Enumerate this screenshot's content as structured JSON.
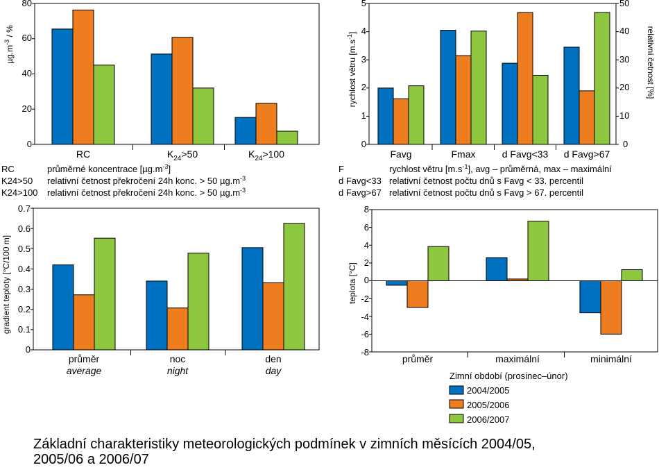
{
  "colors": {
    "s1": "#0070C0",
    "s2": "#ED7D1F",
    "s3": "#8DC63F",
    "axis": "#000000",
    "sep": "#9a9a9a"
  },
  "legend": {
    "title": "Zimní období (prosinec–únor)",
    "items": [
      "2004/2005",
      "2005/2006",
      "2006/2007"
    ]
  },
  "legend_text": {
    "left": [
      {
        "key": "RC",
        "desc": "průměrné koncentrace [µg.m-3]"
      },
      {
        "key": "K24>50",
        "desc": "relativní četnost překročení 24h konc. > 50 µg.m-3"
      },
      {
        "key": "K24>100",
        "desc": "relativní četnost překročení 24h konc. > 50 µg.m-3"
      }
    ],
    "right": [
      {
        "key": "F",
        "desc": "rychlost větru [m.s-1], avg – průměrná, max – maximální"
      },
      {
        "key": "d Favg<33",
        "desc": "relativní četnost počtu dnů s Favg < 33. percentil"
      },
      {
        "key": "d Favg>67",
        "desc": "relativní četnost počtu dnů s Favg > 67. percentil"
      }
    ]
  },
  "caption": {
    "line1": "Základní charakteristiky meteorologických podmínek v zimních měsících 2004/05,",
    "line2": "2005/06 a 2006/07"
  },
  "chart_data": [
    {
      "type": "bar",
      "id": "concentration",
      "title": "",
      "ylabel": "µg.m-3 / %",
      "ylim": [
        0,
        80
      ],
      "yticks": [
        "0",
        "20",
        "40",
        "60",
        "80"
      ],
      "categories": [
        "RC",
        "K24>50",
        "K24>100"
      ],
      "series": [
        {
          "values": [
            65.5,
            51.3,
            15.3
          ]
        },
        {
          "values": [
            76.3,
            60.8,
            23.3
          ]
        },
        {
          "values": [
            45.0,
            32.0,
            7.5
          ]
        }
      ]
    },
    {
      "type": "bar",
      "id": "wind",
      "title": "",
      "ylabel": "rychlost větru [m.s-1]",
      "ylim": [
        0,
        5
      ],
      "yticks": [
        "0",
        "1",
        "2",
        "3",
        "4",
        "5"
      ],
      "y2label": "relativní četnost [%]",
      "y2lim": [
        0,
        50
      ],
      "y2ticks": [
        "0",
        "10",
        "20",
        "30",
        "40",
        "50"
      ],
      "categories": [
        "Favg",
        "Fmax",
        "d Favg<33",
        "d Favg>67"
      ],
      "series": [
        {
          "values": [
            2.0,
            4.05,
            2.88,
            3.45
          ]
        },
        {
          "values": [
            1.62,
            3.15,
            4.68,
            1.9
          ]
        },
        {
          "values": [
            2.08,
            4.02,
            2.45,
            4.68
          ]
        }
      ]
    },
    {
      "type": "bar",
      "id": "gradient",
      "title": "",
      "ylabel": "gradient teploty [°C/100 m]",
      "ylim": [
        0,
        0.7
      ],
      "yticks": [
        "0",
        "0.1",
        "0.2",
        "0.3",
        "0.4",
        "0.5",
        "0.6",
        "0.7"
      ],
      "categories": [
        "průměr",
        "noc",
        "den"
      ],
      "categories_en": [
        "average",
        "night",
        "day"
      ],
      "series": [
        {
          "values": [
            0.42,
            0.34,
            0.505
          ]
        },
        {
          "values": [
            0.272,
            0.207,
            0.332
          ]
        },
        {
          "values": [
            0.552,
            0.478,
            0.625
          ]
        }
      ]
    },
    {
      "type": "bar",
      "id": "temperature",
      "title": "",
      "ylabel": "teplota [°C]",
      "ylim": [
        -8,
        8
      ],
      "yticks": [
        "-8",
        "-6",
        "-4",
        "-2",
        "0",
        "2",
        "4",
        "6",
        "8"
      ],
      "categories": [
        "průměr",
        "maximální",
        "minimální"
      ],
      "series": [
        {
          "values": [
            -0.5,
            2.6,
            -3.6
          ]
        },
        {
          "values": [
            -3.0,
            0.2,
            -6.0
          ]
        },
        {
          "values": [
            3.85,
            6.7,
            1.25
          ]
        }
      ]
    }
  ]
}
